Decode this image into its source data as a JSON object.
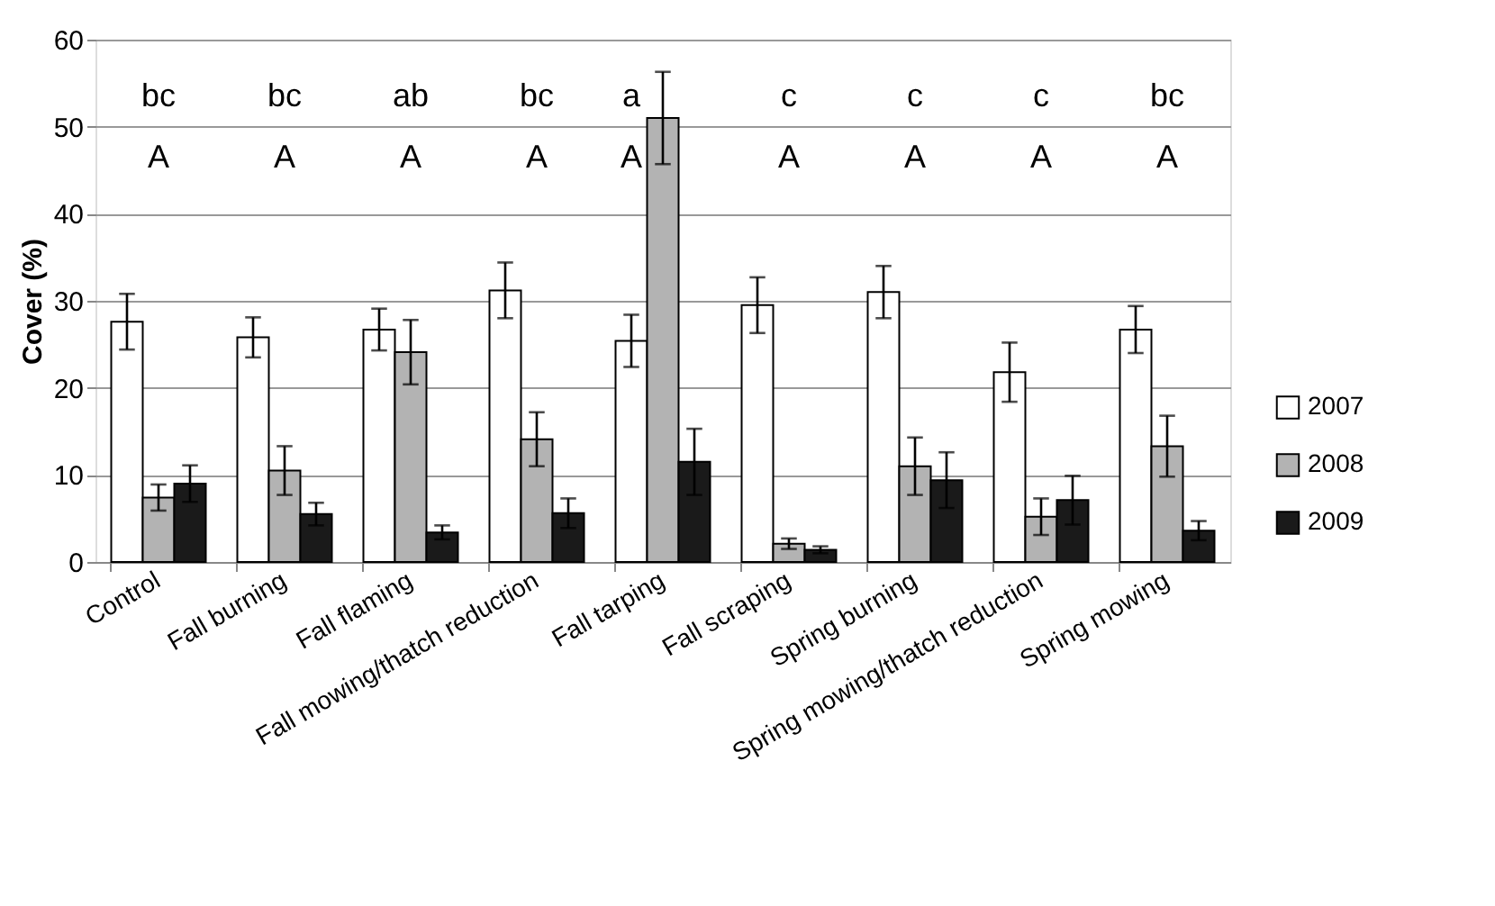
{
  "chart_data": {
    "type": "bar",
    "ylabel": "Cover (%)",
    "categories": [
      "Control",
      "Fall burning",
      "Fall flaming",
      "Fall mowing/thatch reduction",
      "Fall tarping",
      "Fall scraping",
      "Spring burning",
      "Spring mowing/thatch reduction",
      "Spring mowing"
    ],
    "series": [
      {
        "name": "2007",
        "color": "#ffffff",
        "values": [
          27.6,
          25.8,
          26.7,
          31.2,
          25.4,
          29.5,
          31.0,
          21.8,
          26.7
        ],
        "errors": [
          3.2,
          2.3,
          2.4,
          3.2,
          3.0,
          3.2,
          3.0,
          3.4,
          2.7
        ]
      },
      {
        "name": "2008",
        "color": "#b3b3b3",
        "values": [
          7.4,
          10.5,
          24.1,
          14.1,
          51.0,
          2.1,
          11.0,
          5.2,
          13.3
        ],
        "errors": [
          1.5,
          2.8,
          3.7,
          3.1,
          5.3,
          0.6,
          3.3,
          2.1,
          3.5
        ]
      },
      {
        "name": "2009",
        "color": "#1a1a1a",
        "values": [
          9.0,
          5.5,
          3.4,
          5.6,
          11.5,
          1.4,
          9.4,
          7.1,
          3.6
        ],
        "errors": [
          2.1,
          1.3,
          0.8,
          1.7,
          3.8,
          0.4,
          3.2,
          2.8,
          1.1
        ]
      }
    ],
    "ylim": [
      0,
      60
    ],
    "yticks": [
      0,
      10,
      20,
      30,
      40,
      50,
      60
    ],
    "grid": "y",
    "legend": "right",
    "annotations": [
      "bc",
      "bc",
      "ab",
      "bc",
      "a",
      "c",
      "c",
      "c",
      "bc",
      "A",
      "A",
      "A",
      "A",
      "A",
      "A",
      "A",
      "A",
      "A"
    ]
  }
}
